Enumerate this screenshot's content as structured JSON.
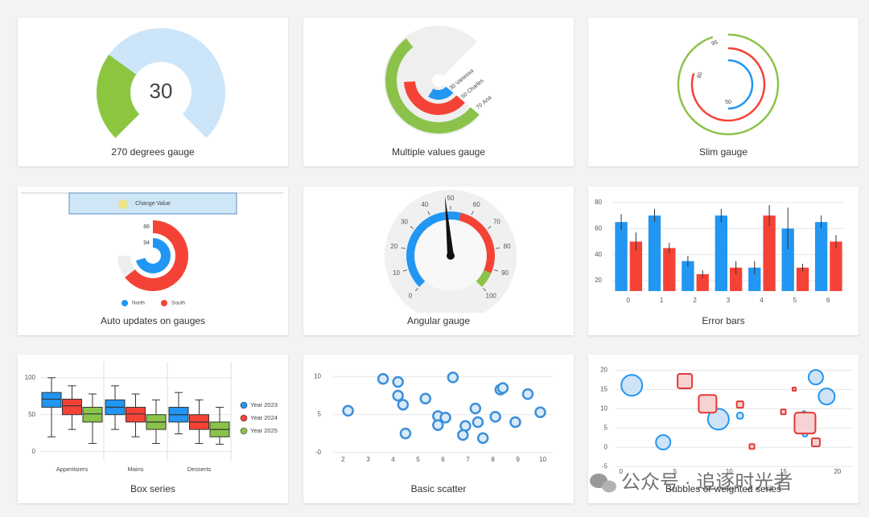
{
  "watermark": "公众号 · 追逐时光者",
  "chart_data": [
    {
      "type": "gauge",
      "title": "270 degrees gauge",
      "value": 30,
      "ylim": [
        0,
        100
      ],
      "color": "#8cc63f",
      "track_color": "#cce5f9",
      "label_color": "#e8262c"
    },
    {
      "type": "multigauge",
      "title": "Multiple values gauge",
      "ylim": [
        0,
        100
      ],
      "track_color": "#efefef",
      "series": [
        {
          "name": "Ana",
          "value": 70,
          "color": "#8bc34a"
        },
        {
          "name": "Charles",
          "value": 50,
          "color": "#f44336"
        },
        {
          "name": "Vanessa",
          "value": 30,
          "color": "#2196f3"
        }
      ]
    },
    {
      "type": "slimgauge",
      "title": "Slim gauge",
      "ylim": [
        0,
        100
      ],
      "series": [
        {
          "value": 95,
          "color": "#8bc34a"
        },
        {
          "value": 80,
          "color": "#f44336"
        },
        {
          "value": 50,
          "color": "#2196f3"
        }
      ]
    },
    {
      "type": "radialgauge",
      "title": "Auto updates on gauges",
      "button": "Change Value",
      "ylim": [
        0,
        100
      ],
      "track_color": "#eeeeee",
      "series": [
        {
          "name": "North",
          "value": 94,
          "color": "#2196f3"
        },
        {
          "name": "South",
          "value": 86,
          "color": "#f44336"
        }
      ]
    },
    {
      "type": "angulargauge",
      "title": "Angular gauge",
      "value": 48,
      "xlim": [
        0,
        100
      ],
      "xticks": [
        0,
        10,
        20,
        30,
        40,
        50,
        60,
        70,
        80,
        90,
        100
      ],
      "needle_color": "#111111",
      "bands": [
        {
          "from": 0,
          "to": 55,
          "color": "#2196f3"
        },
        {
          "from": 55,
          "to": 92,
          "color": "#f44336"
        },
        {
          "from": 92,
          "to": 100,
          "color": "#8bc34a"
        }
      ]
    },
    {
      "type": "bar",
      "title": "Error bars",
      "categories": [
        "0",
        "1",
        "2",
        "3",
        "4",
        "5",
        "6"
      ],
      "ylim": [
        12,
        83
      ],
      "yticks": [
        20,
        40,
        60,
        80
      ],
      "grid": true,
      "series": [
        {
          "color": "#2196f3",
          "values": [
            65,
            70,
            35,
            70,
            30,
            60,
            65
          ],
          "errors": [
            6,
            5,
            4,
            5,
            5,
            16,
            5
          ]
        },
        {
          "color": "#f44336",
          "values": [
            50,
            45,
            25,
            30,
            70,
            30,
            50
          ],
          "errors": [
            7,
            4,
            3,
            5,
            8,
            3,
            5
          ]
        }
      ]
    },
    {
      "type": "box",
      "title": "Box series",
      "categories": [
        "Apperitizers",
        "Mains",
        "Desserts"
      ],
      "ylim": [
        -8,
        115
      ],
      "yticks": [
        0,
        50,
        100
      ],
      "grid": true,
      "series": [
        {
          "name": "Year 2023",
          "color": "#2196f3",
          "values": [
            [
              20,
              60,
              71,
              80,
              100
            ],
            [
              30,
              50,
              60,
              70,
              89
            ],
            [
              24,
              40,
              50,
              60,
              80
            ]
          ]
        },
        {
          "name": "Year 2024",
          "color": "#f44336",
          "values": [
            [
              30,
              50,
              62,
              71,
              89
            ],
            [
              20,
              40,
              51,
              60,
              78
            ],
            [
              11,
              30,
              40,
              50,
              70
            ]
          ]
        },
        {
          "name": "Year 2025",
          "color": "#8bc34a",
          "values": [
            [
              11,
              40,
              51,
              60,
              78
            ],
            [
              11,
              30,
              40,
              50,
              70
            ],
            [
              10,
              20,
              30,
              40,
              60
            ]
          ]
        }
      ]
    },
    {
      "type": "scatter",
      "title": "Basic scatter",
      "color": "#3d8fd9",
      "fill_color": "#d9eaf8",
      "x": [
        2.2,
        3.6,
        4.2,
        4.2,
        4.4,
        4.5,
        5.3,
        5.8,
        6.1,
        5.8,
        6.4,
        6.9,
        6.8,
        7.3,
        7.4,
        7.6,
        8.1,
        8.3,
        8.4,
        8.9,
        9.4,
        9.9
      ],
      "values": [
        5.5,
        9.7,
        9.3,
        7.5,
        6.3,
        2.5,
        7.1,
        4.8,
        4.6,
        3.6,
        9.9,
        3.5,
        2.3,
        5.8,
        4.0,
        1.9,
        4.7,
        8.3,
        8.5,
        4.0,
        7.7,
        5.3
      ],
      "xlim": [
        1.6,
        10.4
      ],
      "ylim": [
        -1.3,
        11
      ],
      "xticks": [
        2,
        3,
        4,
        5,
        6,
        7,
        8,
        9,
        10
      ],
      "yticks": [
        {
          "value": 0,
          "label": "-0"
        },
        5,
        10
      ],
      "grid": true
    },
    {
      "type": "bubble",
      "title": "Bubbles or weighted series",
      "xlim": [
        -0.5,
        21.5
      ],
      "ylim": [
        -6,
        22
      ],
      "xticks": [
        0,
        5,
        10,
        15,
        20
      ],
      "yticks": [
        -5,
        0,
        5,
        10,
        15,
        20
      ],
      "grid": true,
      "series": [
        {
          "marker": "circle",
          "color": "#2196f3",
          "fill_color": "#cfe3f6",
          "x": [
            1,
            3.9,
            9,
            11,
            16.9,
            17,
            18,
            19
          ],
          "values": [
            16.1,
            1.3,
            7.3,
            8.2,
            9,
            3.4,
            18.2,
            13.2
          ],
          "sizes": [
            13,
            9,
            13,
            4,
            2,
            3,
            9,
            10
          ]
        },
        {
          "marker": "square",
          "color": "#e53935",
          "fill_color": "#f7d2d2",
          "x": [
            5.9,
            8,
            11,
            12.1,
            15,
            16,
            17,
            18
          ],
          "values": [
            17.2,
            11.3,
            11.1,
            0.2,
            9.2,
            15.1,
            6.3,
            1.3
          ],
          "sizes": [
            9,
            11,
            4,
            3,
            3,
            2,
            13,
            5
          ]
        }
      ]
    }
  ]
}
